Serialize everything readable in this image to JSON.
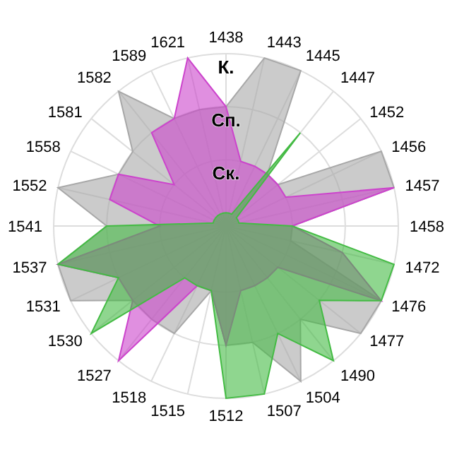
{
  "chart_data": {
    "type": "radar",
    "categories": [
      "1438",
      "1443",
      "1445",
      "1447",
      "1452",
      "1456",
      "1457",
      "1458",
      "1472",
      "1476",
      "1477",
      "1490",
      "1504",
      "1507",
      "1512",
      "1515",
      "1518",
      "1527",
      "1530",
      "1531",
      "1537",
      "1541",
      "1552",
      "1558",
      "1581",
      "1582",
      "1589",
      "1621"
    ],
    "ylim": [
      -0.25,
      3
    ],
    "yticks": [
      {
        "value": 1,
        "label": "Ск."
      },
      {
        "value": 2,
        "label": "Сп."
      },
      {
        "value": 3,
        "label": "К."
      }
    ],
    "grid": true,
    "series": [
      {
        "color": "#a8a8a8",
        "values": [
          2,
          3,
          3,
          1,
          1,
          3,
          3,
          1,
          1,
          3,
          3,
          2,
          3,
          2,
          2,
          1,
          2,
          2,
          2,
          3,
          3,
          2,
          3,
          2,
          2,
          3,
          2,
          2
        ]
      },
      {
        "color": "#cc44cc",
        "values": [
          2,
          1,
          1,
          1,
          1,
          1,
          3,
          1,
          2,
          3,
          1,
          1,
          1,
          1,
          2,
          1,
          1,
          3,
          2,
          2,
          3,
          1,
          2,
          2,
          1,
          2,
          2,
          3
        ]
      },
      {
        "color": "#44bb44",
        "values": [
          0,
          0,
          0,
          2,
          0,
          0,
          0,
          1,
          3,
          3,
          2,
          3,
          2,
          3,
          3,
          1,
          1,
          1,
          3,
          2,
          3,
          2,
          0,
          0,
          0,
          0,
          0,
          0
        ]
      }
    ]
  }
}
